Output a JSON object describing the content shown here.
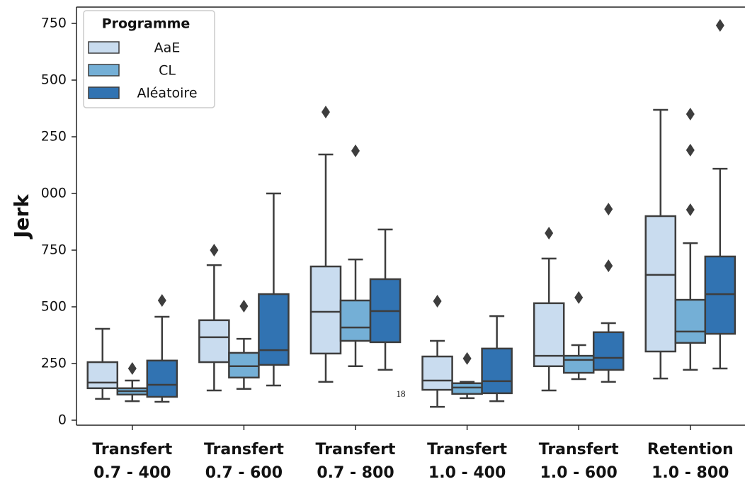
{
  "chart_data": {
    "type": "box",
    "ylabel": "Jerk",
    "annotation": "18",
    "legend_title": "Programme",
    "legend": "upper left",
    "categories": [
      "Transfert\n0.7 - 400",
      "Transfert\n0.7 - 600",
      "Transfert\n0.7 - 800",
      "Transfert\n1.0 - 400",
      "Transfert\n1.0 - 600",
      "Retention\n1.0 - 800"
    ],
    "ylim": [
      -22,
      1822
    ],
    "yticks": [
      0,
      250,
      500,
      750,
      {
        "value": 1000,
        "label": "000"
      },
      {
        "value": 1250,
        "label": "250"
      },
      {
        "value": 1500,
        "label": "500"
      },
      {
        "value": 1750,
        "label": "750"
      }
    ],
    "series": [
      {
        "name": "AaE",
        "color": "#c9dcef",
        "boxes": [
          {
            "whislo": 94,
            "q1": 141,
            "med": 166,
            "q3": 256,
            "whishi": 403,
            "fliers": []
          },
          {
            "whislo": 131,
            "q1": 256,
            "med": 366,
            "q3": 441,
            "whishi": 684,
            "fliers": [
              750
            ]
          },
          {
            "whislo": 169,
            "q1": 294,
            "med": 478,
            "q3": 678,
            "whishi": 1172,
            "fliers": [
              1359
            ]
          },
          {
            "whislo": 59,
            "q1": 134,
            "med": 175,
            "q3": 281,
            "whishi": 350,
            "fliers": [
              525
            ]
          },
          {
            "whislo": 131,
            "q1": 238,
            "med": 284,
            "q3": 516,
            "whishi": 713,
            "fliers": [
              825
            ]
          },
          {
            "whislo": 184,
            "q1": 303,
            "med": 641,
            "q3": 900,
            "whishi": 1369,
            "fliers": []
          }
        ]
      },
      {
        "name": "CL",
        "color": "#74afd6",
        "boxes": [
          {
            "whislo": 84,
            "q1": 113,
            "med": 128,
            "q3": 141,
            "whishi": 175,
            "fliers": [
              228
            ]
          },
          {
            "whislo": 138,
            "q1": 188,
            "med": 238,
            "q3": 297,
            "whishi": 359,
            "fliers": [
              503
            ]
          },
          {
            "whislo": 238,
            "q1": 350,
            "med": 409,
            "q3": 528,
            "whishi": 709,
            "fliers": [
              1188
            ]
          },
          {
            "whislo": 97,
            "q1": 116,
            "med": 144,
            "q3": 163,
            "whishi": 169,
            "fliers": [
              272
            ]
          },
          {
            "whislo": 181,
            "q1": 209,
            "med": 266,
            "q3": 284,
            "whishi": 331,
            "fliers": [
              541
            ]
          },
          {
            "whislo": 222,
            "q1": 341,
            "med": 391,
            "q3": 531,
            "whishi": 781,
            "fliers": [
              928,
              1191,
              1350
            ]
          }
        ]
      },
      {
        "name": "Aléatoire",
        "color": "#3173b2",
        "boxes": [
          {
            "whislo": 81,
            "q1": 103,
            "med": 156,
            "q3": 263,
            "whishi": 456,
            "fliers": [
              528
            ]
          },
          {
            "whislo": 153,
            "q1": 244,
            "med": 309,
            "q3": 556,
            "whishi": 1000,
            "fliers": []
          },
          {
            "whislo": 222,
            "q1": 344,
            "med": 481,
            "q3": 622,
            "whishi": 841,
            "fliers": []
          },
          {
            "whislo": 84,
            "q1": 119,
            "med": 172,
            "q3": 316,
            "whishi": 459,
            "fliers": []
          },
          {
            "whislo": 169,
            "q1": 222,
            "med": 275,
            "q3": 388,
            "whishi": 428,
            "fliers": [
              681,
              931
            ]
          },
          {
            "whislo": 228,
            "q1": 381,
            "med": 556,
            "q3": 722,
            "whishi": 1109,
            "fliers": [
              1741
            ]
          }
        ]
      }
    ]
  }
}
